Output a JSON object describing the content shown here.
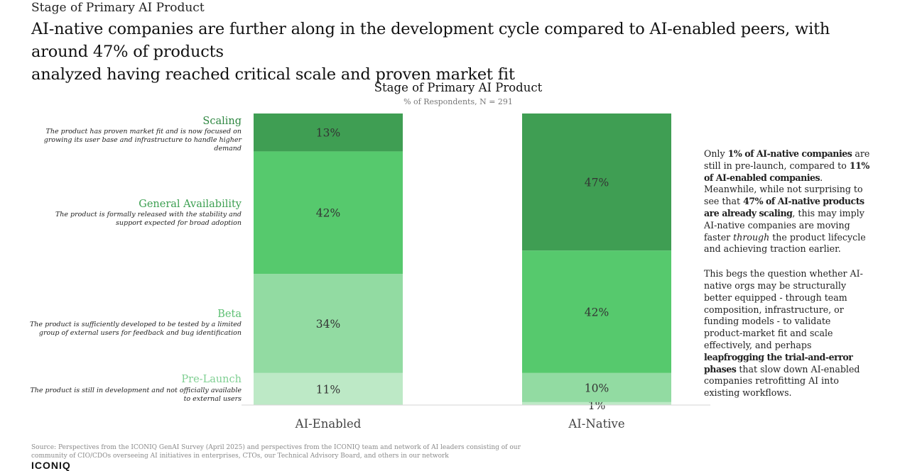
{
  "header": {
    "supertitle": "Stage of Primary AI Product",
    "headline_line1": "AI-native companies are further along in the development cycle compared to AI-enabled peers, with around 47% of products",
    "headline_line2": "analyzed having reached critical scale and proven market fit"
  },
  "chart_data": {
    "type": "bar",
    "stacked": true,
    "title": "Stage of Primary AI Product",
    "subtitle": "% of Respondents, N = 291",
    "categories": [
      "AI-Enabled",
      "AI-Native"
    ],
    "series": [
      {
        "name": "Pre-Launch",
        "description": "The product is still in development and not officially available to external users",
        "values": [
          11,
          1
        ],
        "labels": [
          "11%",
          "1%"
        ],
        "color": "#bde9c6",
        "label_color": "#7fcf92"
      },
      {
        "name": "Beta",
        "description": "The product is sufficiently developed to be tested by a limited group of external users for feedback and bug identification",
        "values": [
          34,
          10
        ],
        "labels": [
          "34%",
          "10%"
        ],
        "color": "#92dba2",
        "label_color": "#5cbf72"
      },
      {
        "name": "General Availability",
        "description": "The product is formally released with the stability and support expected for broad adoption",
        "values": [
          42,
          42
        ],
        "labels": [
          "42%",
          "42%"
        ],
        "color": "#56c96d",
        "label_color": "#3c9f51"
      },
      {
        "name": "Scaling",
        "description": "The product has proven market fit and is now focused on growing its user base and infrastructure to handle higher demand",
        "values": [
          13,
          47
        ],
        "labels": [
          "13%",
          "47%"
        ],
        "color": "#3f9e53",
        "label_color": "#2d8640"
      }
    ],
    "ylim": [
      0,
      100
    ]
  },
  "commentary": {
    "p1": [
      {
        "t": "Only ",
        "b": false
      },
      {
        "t": "1% of AI-native companies",
        "b": true
      },
      {
        "t": " are still in pre-launch, compared to ",
        "b": false
      },
      {
        "t": "11% of AI-enabled companies",
        "b": true
      },
      {
        "t": ". Meanwhile, while not surprising to see that ",
        "b": false
      },
      {
        "t": "47% of AI-native products are already scaling",
        "b": true
      },
      {
        "t": ", this may imply AI-native companies are moving faster ",
        "b": false
      },
      {
        "t": "through",
        "b": false,
        "i": true
      },
      {
        "t": " the product lifecycle and achieving traction earlier.",
        "b": false
      }
    ],
    "p2": [
      {
        "t": "This begs the question whether AI-native orgs may be structurally better equipped - through team composition, infrastructure, or funding models - to validate product-market fit and scale effectively, and perhaps ",
        "b": false
      },
      {
        "t": "leapfrogging the trial-and-error phases",
        "b": true
      },
      {
        "t": " that slow down AI-enabled companies retrofitting AI into existing workflows.",
        "b": false
      }
    ]
  },
  "footer": {
    "source": "Source: Perspectives from the ICONIQ GenAI Survey (April 2025) and perspectives from the ICONIQ team and network of AI leaders consisting of our community of CIO/CDOs overseeing AI initiatives in enterprises, CTOs, our Technical Advisory Board, and others in our network",
    "logo": "ICONIQ"
  }
}
